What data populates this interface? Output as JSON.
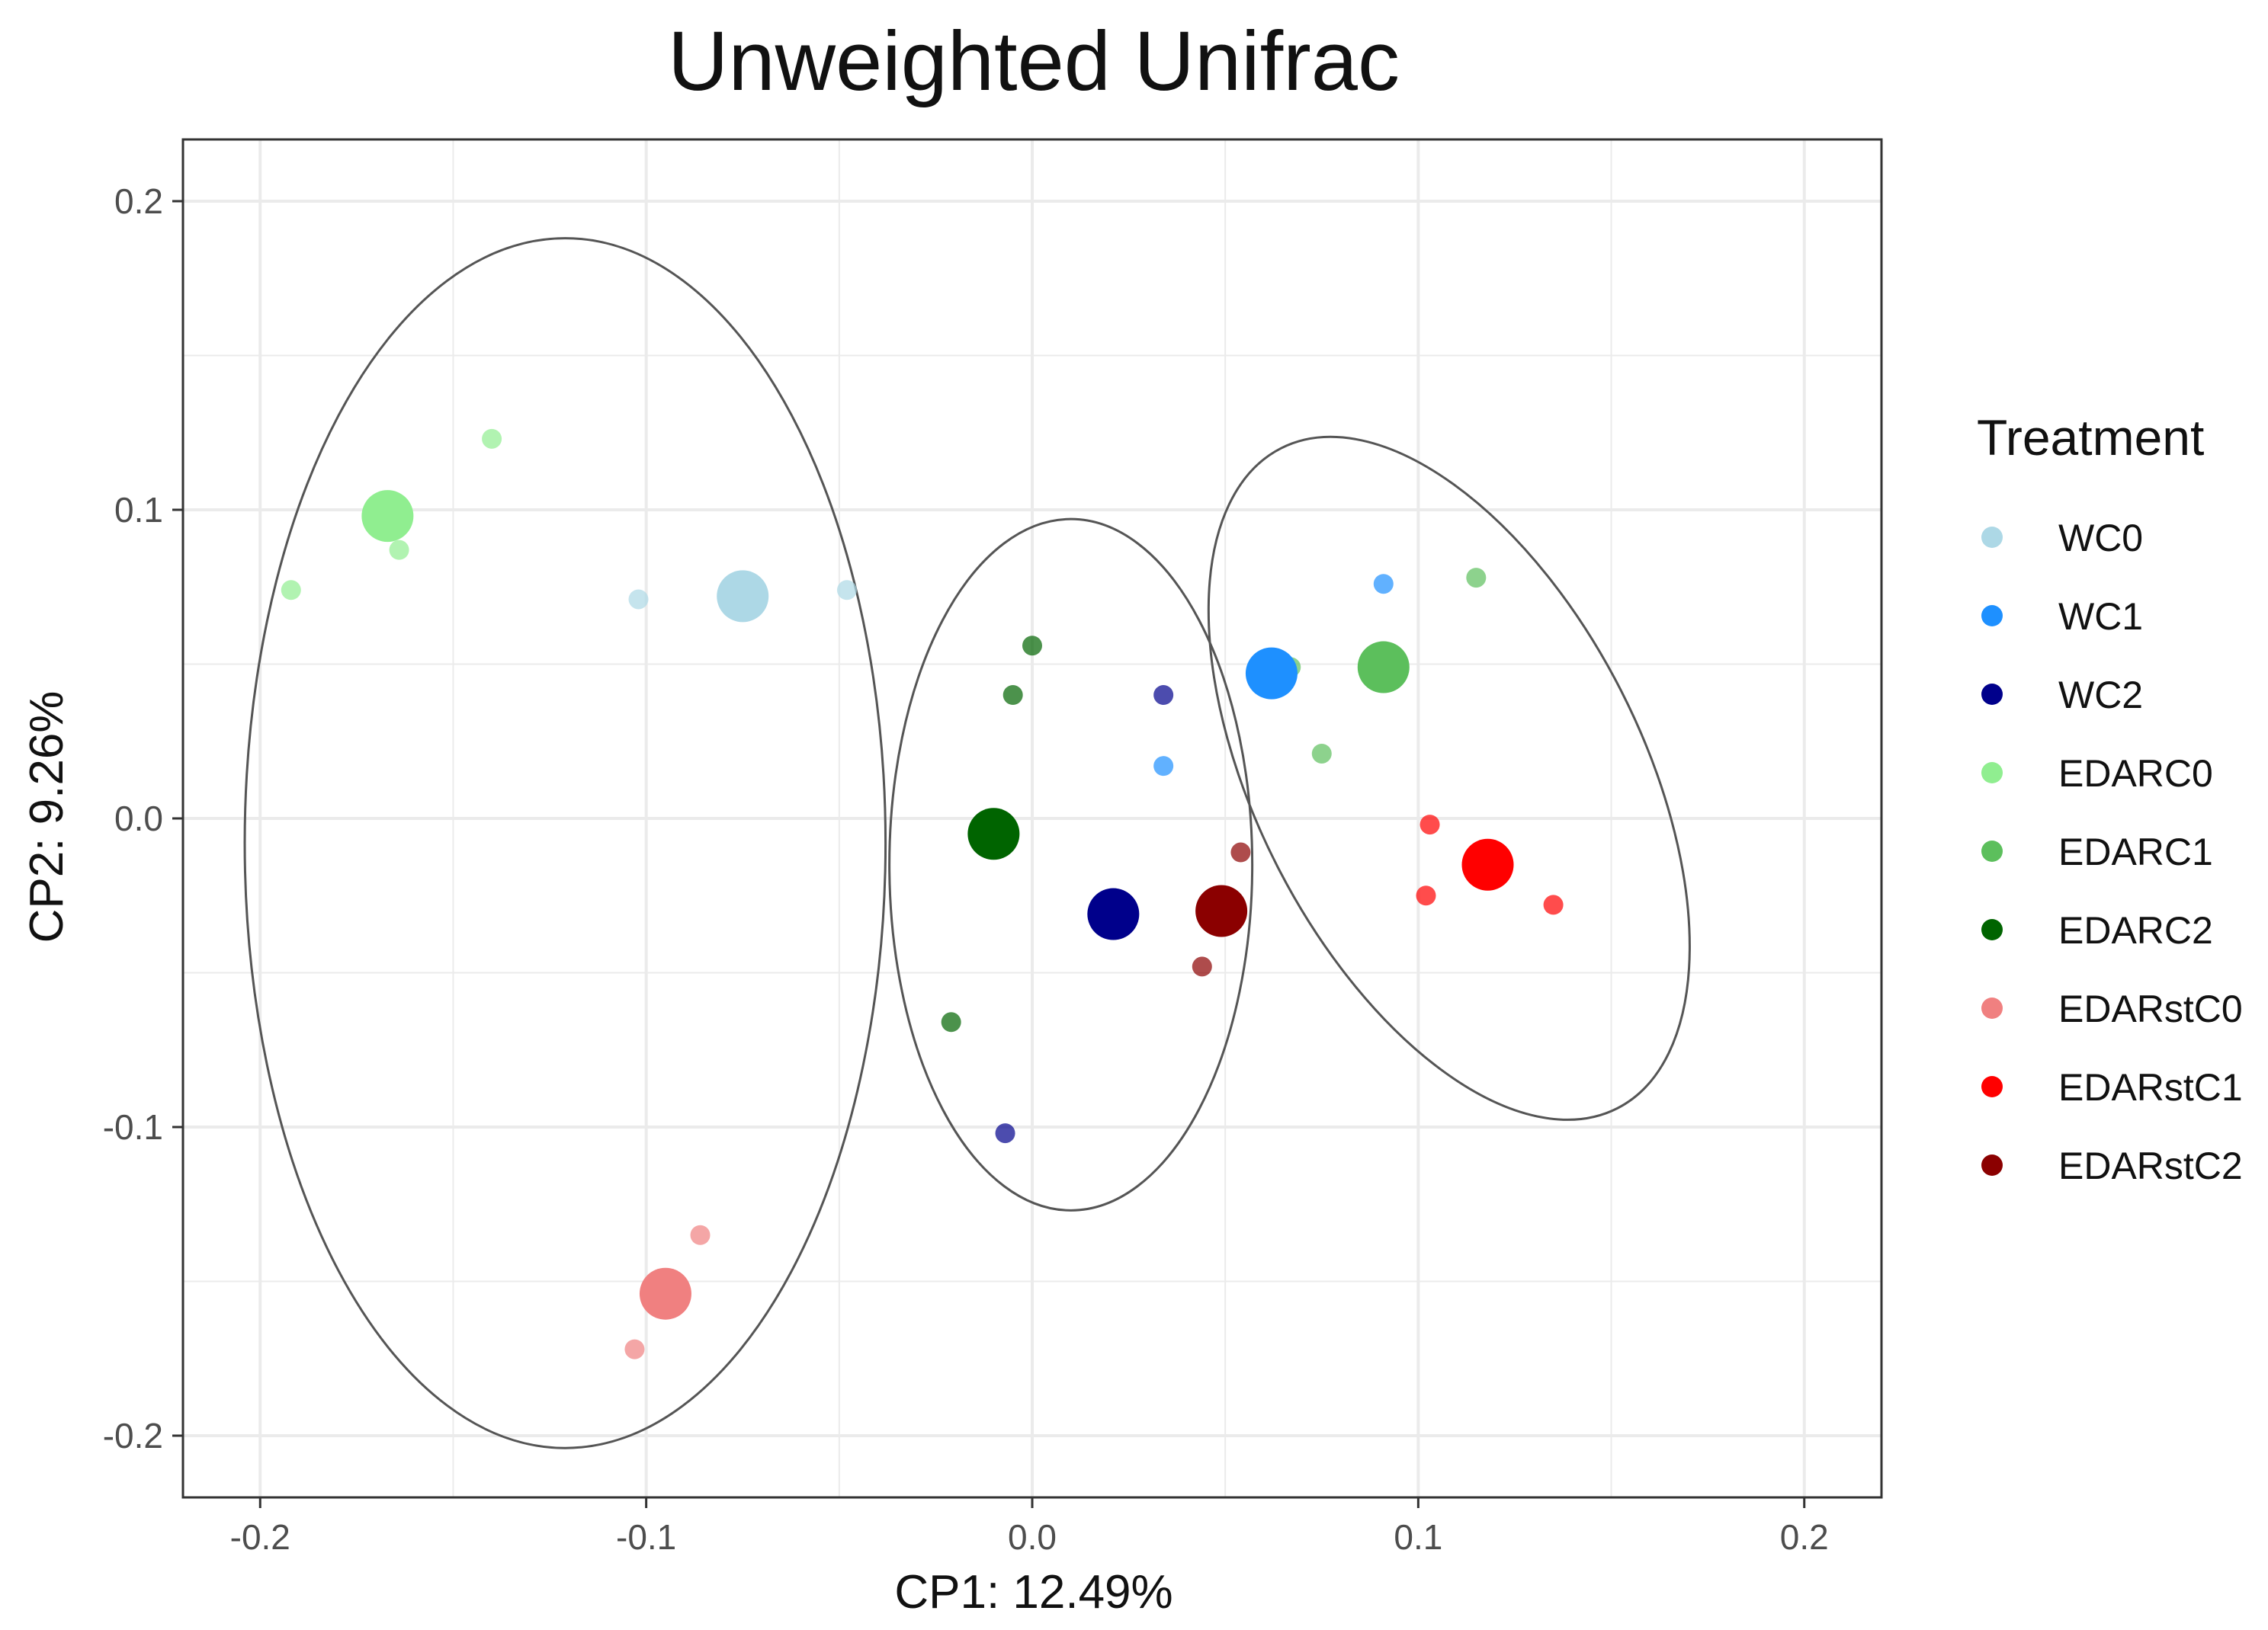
{
  "chart_data": {
    "type": "scatter",
    "title": "Unweighted Unifrac",
    "xlabel": "CP1: 12.49%",
    "ylabel": "CP2: 9.26%",
    "xlim": [
      -0.22,
      0.22
    ],
    "ylim": [
      -0.22,
      0.22
    ],
    "xticks": [
      -0.2,
      -0.1,
      0.0,
      0.1,
      0.2
    ],
    "xtick_labels": [
      "-0.2",
      "-0.1",
      "0.0",
      "0.1",
      "0.2"
    ],
    "yticks": [
      -0.2,
      -0.1,
      0.0,
      0.1,
      0.2
    ],
    "ytick_labels": [
      "-0.2",
      "-0.1",
      "0.0",
      "0.1",
      "0.2"
    ],
    "grid": true,
    "legend_title": "Treatment",
    "legend_position": "right",
    "series": [
      {
        "name": "WC0",
        "color": "#add8e6",
        "centroid": [
          -0.075,
          0.072
        ],
        "points": [
          [
            -0.102,
            0.071
          ],
          [
            -0.048,
            0.074
          ]
        ]
      },
      {
        "name": "WC1",
        "color": "#1e90ff",
        "centroid": [
          0.062,
          0.047
        ],
        "points": [
          [
            0.091,
            0.076
          ],
          [
            0.034,
            0.017
          ]
        ]
      },
      {
        "name": "WC2",
        "color": "#00008b",
        "centroid": [
          0.021,
          -0.031
        ],
        "points": [
          [
            0.034,
            0.04
          ],
          [
            -0.007,
            -0.102
          ],
          [
            0.05,
            -0.027
          ]
        ]
      },
      {
        "name": "EDARC0",
        "color": "#90ee90",
        "centroid": [
          -0.167,
          0.098
        ],
        "points": [
          [
            -0.14,
            0.123
          ],
          [
            -0.164,
            0.087
          ],
          [
            -0.192,
            0.074
          ]
        ]
      },
      {
        "name": "EDARC1",
        "color": "#5cbf5c",
        "centroid": [
          0.091,
          0.049
        ],
        "points": [
          [
            0.115,
            0.078
          ],
          [
            0.075,
            0.021
          ],
          [
            0.067,
            0.049
          ]
        ]
      },
      {
        "name": "EDARC2",
        "color": "#006400",
        "centroid": [
          -0.01,
          -0.005
        ],
        "points": [
          [
            0.0,
            0.056
          ],
          [
            -0.005,
            0.04
          ],
          [
            -0.021,
            -0.066
          ]
        ]
      },
      {
        "name": "EDARstC0",
        "color": "#f08080",
        "centroid": [
          -0.095,
          -0.154
        ],
        "points": [
          [
            -0.086,
            -0.135
          ],
          [
            -0.103,
            -0.172
          ]
        ]
      },
      {
        "name": "EDARstC1",
        "color": "#ff0000",
        "centroid": [
          0.118,
          -0.015
        ],
        "points": [
          [
            0.103,
            -0.002
          ],
          [
            0.102,
            -0.025
          ],
          [
            0.135,
            -0.028
          ]
        ]
      },
      {
        "name": "EDARstC2",
        "color": "#8b0000",
        "centroid": [
          0.049,
          -0.03
        ],
        "points": [
          [
            0.054,
            -0.011
          ],
          [
            0.044,
            -0.048
          ]
        ]
      }
    ],
    "ellipses": [
      {
        "center": [
          -0.121,
          -0.008
        ],
        "rx": 0.083,
        "ry": 0.196,
        "angle_deg": 0
      },
      {
        "center": [
          0.01,
          -0.015
        ],
        "rx": 0.047,
        "ry": 0.112,
        "angle_deg": 0
      },
      {
        "center": [
          0.108,
          0.013
        ],
        "rx": 0.05,
        "ry": 0.12,
        "angle_deg": 27
      }
    ],
    "colors": {
      "ellipse_stroke": "#555555",
      "grid": "#ebebeb",
      "panel_border": "#333333"
    }
  }
}
